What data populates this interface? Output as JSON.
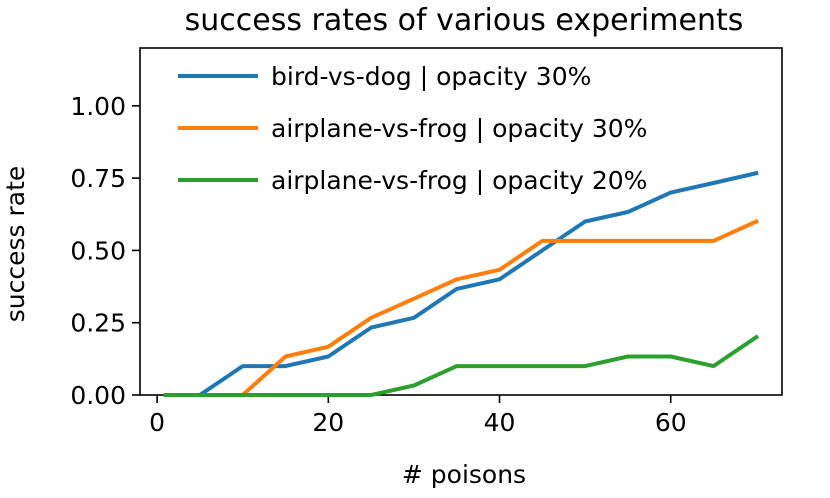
{
  "chart_data": {
    "type": "line",
    "title": "success rates of various experiments",
    "xlabel": "# poisons",
    "ylabel": "success rate",
    "xlim": [
      -2,
      73
    ],
    "ylim": [
      0,
      1.2
    ],
    "xticks": [
      "0",
      "20",
      "40",
      "60"
    ],
    "yticks": [
      "0.00",
      "0.25",
      "0.50",
      "0.75",
      "1.00"
    ],
    "legend_position": "top-right",
    "grid": false,
    "series": [
      {
        "name": "bird-vs-dog | opacity 30%",
        "color": "#1f77b4",
        "x": [
          1,
          5,
          10,
          15,
          20,
          25,
          30,
          35,
          40,
          45,
          50,
          55,
          60,
          65,
          70
        ],
        "y": [
          0,
          0,
          0.1,
          0.1,
          0.133,
          0.233,
          0.267,
          0.367,
          0.4,
          0.5,
          0.6,
          0.633,
          0.7,
          0.733,
          0.767
        ]
      },
      {
        "name": "airplane-vs-frog | opacity 30%",
        "color": "#ff7f0e",
        "x": [
          1,
          5,
          10,
          15,
          20,
          25,
          30,
          35,
          40,
          45,
          50,
          55,
          60,
          65,
          70
        ],
        "y": [
          0,
          0,
          0,
          0.133,
          0.167,
          0.267,
          0.333,
          0.4,
          0.433,
          0.533,
          0.533,
          0.533,
          0.533,
          0.533,
          0.6
        ]
      },
      {
        "name": "airplane-vs-frog | opacity 20%",
        "color": "#2ca02c",
        "x": [
          1,
          5,
          10,
          15,
          20,
          25,
          30,
          35,
          40,
          45,
          50,
          55,
          60,
          65,
          70
        ],
        "y": [
          0,
          0,
          0,
          0,
          0,
          0,
          0.033,
          0.1,
          0.1,
          0.1,
          0.1,
          0.133,
          0.133,
          0.1,
          0.2
        ]
      }
    ]
  }
}
